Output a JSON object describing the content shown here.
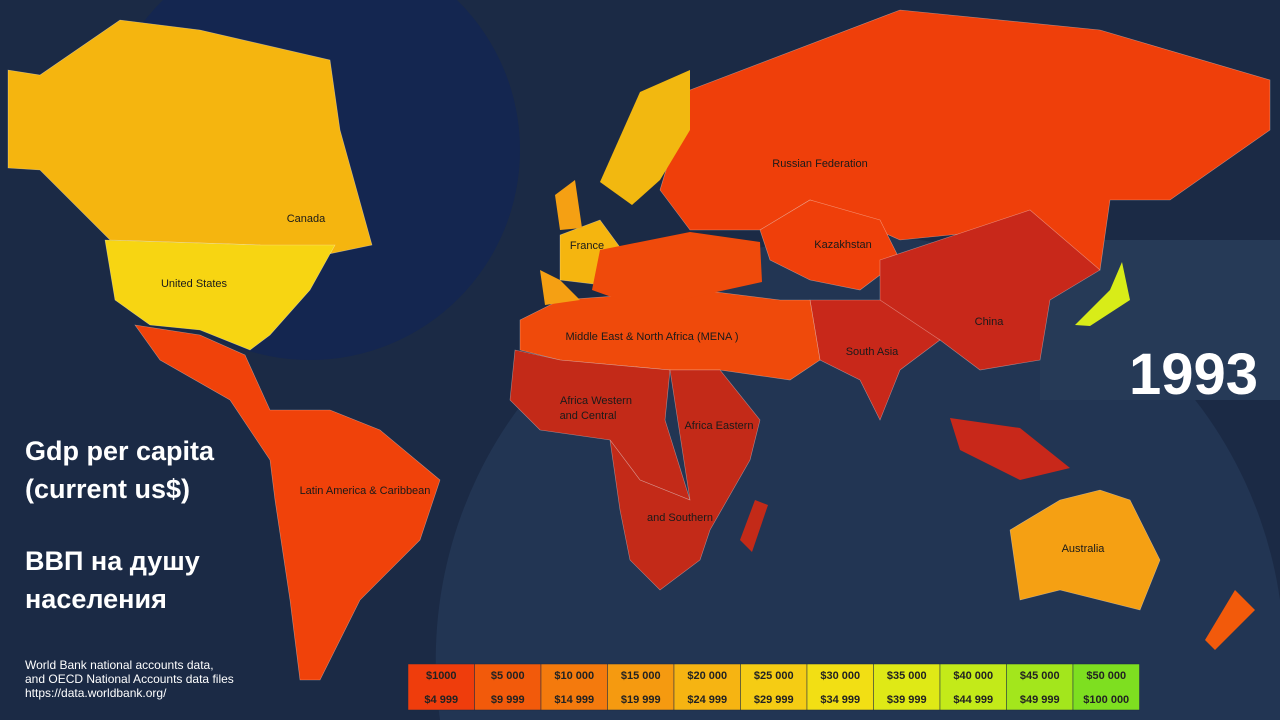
{
  "title_lines": [
    "Gdp per capita",
    "(current us$)"
  ],
  "subtitle_lines": [
    "ВВП на душу",
    "населения"
  ],
  "year": "1993",
  "source_lines": [
    "World Bank national accounts data,",
    "and OECD National Accounts data files",
    "https://data.worldbank.org/"
  ],
  "legend": [
    {
      "from": "$1000",
      "to": "$4 999",
      "color": "#ef3d0c"
    },
    {
      "from": "$5 000",
      "to": "$9 999",
      "color": "#f25a0b"
    },
    {
      "from": "$10 000",
      "to": "$14 999",
      "color": "#f47a0d"
    },
    {
      "from": "$15 000",
      "to": "$19 999",
      "color": "#f59a10"
    },
    {
      "from": "$20 000",
      "to": "$24 999",
      "color": "#f6b412"
    },
    {
      "from": "$25 000",
      "to": "$29 999",
      "color": "#f5cc14"
    },
    {
      "from": "$30 000",
      "to": "$34 999",
      "color": "#f2df14"
    },
    {
      "from": "$35 000",
      "to": "$39 999",
      "color": "#dfe916"
    },
    {
      "from": "$40 000",
      "to": "$44 999",
      "color": "#c3ea19"
    },
    {
      "from": "$45 000",
      "to": "$49 999",
      "color": "#a3e61c"
    },
    {
      "from": "$50 000",
      "to": "$100 000",
      "color": "#7edf20"
    }
  ],
  "regions": [
    {
      "label": [
        "Canada"
      ],
      "color": "#f5b50f"
    },
    {
      "label": [
        "United States"
      ],
      "color": "#f7d512"
    },
    {
      "label": [
        "Latin America & Caribbean"
      ],
      "color": "#f0420a"
    },
    {
      "label": [
        "Russian Federation"
      ],
      "color": "#ef3f0a"
    },
    {
      "label": [
        "Kazakhstan"
      ],
      "color": "#ef3f0a"
    },
    {
      "label": [
        "China"
      ],
      "color": "#c8281a"
    },
    {
      "label": [
        "South Asia"
      ],
      "color": "#c8281a"
    },
    {
      "label": [
        "Middle East & North Africa (MENA )"
      ],
      "color": "#ef4a0b"
    },
    {
      "label": [
        "Africa Western",
        "and Central"
      ],
      "color": "#c32a18"
    },
    {
      "label": [
        "Africa Eastern",
        "and Southern"
      ],
      "color": "#c32a18"
    },
    {
      "label": [
        "France"
      ],
      "color": "#f5b50f"
    },
    {
      "label": [
        "Australia"
      ],
      "color": "#f5a013"
    }
  ]
}
